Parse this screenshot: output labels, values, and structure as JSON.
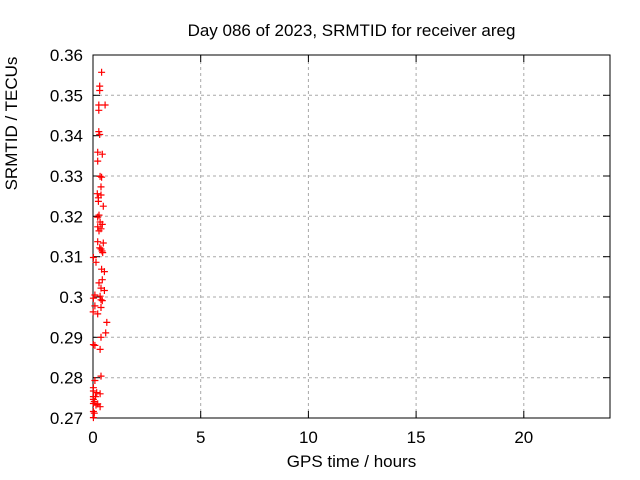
{
  "chart_data": {
    "type": "scatter",
    "title": "Day 086 of 2023, SRMTID for receiver areg",
    "xlabel": "GPS time / hours",
    "ylabel": "SRMTID / TECUs",
    "xlim": [
      0,
      24
    ],
    "ylim": [
      0.27,
      0.36
    ],
    "xticks": [
      {
        "value": 0,
        "label": "0"
      },
      {
        "value": 5,
        "label": "5"
      },
      {
        "value": 10,
        "label": "10"
      },
      {
        "value": 15,
        "label": "15"
      },
      {
        "value": 20,
        "label": "20"
      }
    ],
    "yticks": [
      {
        "value": 0.27,
        "label": "0.27"
      },
      {
        "value": 0.28,
        "label": "0.28"
      },
      {
        "value": 0.29,
        "label": "0.29"
      },
      {
        "value": 0.3,
        "label": "0.3"
      },
      {
        "value": 0.31,
        "label": "0.31"
      },
      {
        "value": 0.32,
        "label": "0.32"
      },
      {
        "value": 0.33,
        "label": "0.33"
      },
      {
        "value": 0.34,
        "label": "0.34"
      },
      {
        "value": 0.35,
        "label": "0.35"
      },
      {
        "value": 0.36,
        "label": "0.36"
      }
    ],
    "grid": true,
    "grid_style": "dashed",
    "legend": "none",
    "marker": "plus",
    "colors": {
      "marker": "#ff0000",
      "grid": "#a8a8a8",
      "axis": "#000000",
      "background": "#ffffff",
      "text": "#000000"
    },
    "series": [
      {
        "name": "SRMTID",
        "points": [
          [
            0.4,
            0.3557
          ],
          [
            0.31,
            0.3523
          ],
          [
            0.31,
            0.3512
          ],
          [
            0.27,
            0.3476
          ],
          [
            0.56,
            0.3476
          ],
          [
            0.27,
            0.3463
          ],
          [
            0.27,
            0.341
          ],
          [
            0.31,
            0.3403
          ],
          [
            0.22,
            0.3359
          ],
          [
            0.43,
            0.3354
          ],
          [
            0.22,
            0.3337
          ],
          [
            0.33,
            0.3299
          ],
          [
            0.4,
            0.3297
          ],
          [
            0.37,
            0.3273
          ],
          [
            0.2,
            0.3256
          ],
          [
            0.37,
            0.3253
          ],
          [
            0.25,
            0.3246
          ],
          [
            0.25,
            0.3237
          ],
          [
            0.48,
            0.3225
          ],
          [
            0.28,
            0.3203
          ],
          [
            0.22,
            0.3198
          ],
          [
            0.33,
            0.3186
          ],
          [
            0.43,
            0.318
          ],
          [
            0.22,
            0.3174
          ],
          [
            0.37,
            0.3169
          ],
          [
            0.28,
            0.3164
          ],
          [
            0.22,
            0.3137
          ],
          [
            0.48,
            0.3134
          ],
          [
            0.31,
            0.3122
          ],
          [
            0.37,
            0.3119
          ],
          [
            0.42,
            0.3114
          ],
          [
            0.45,
            0.311
          ],
          [
            0.02,
            0.3098
          ],
          [
            0.14,
            0.3086
          ],
          [
            0.4,
            0.3069
          ],
          [
            0.53,
            0.3063
          ],
          [
            0.43,
            0.3043
          ],
          [
            0.28,
            0.3035
          ],
          [
            0.37,
            0.3022
          ],
          [
            0.53,
            0.3016
          ],
          [
            0.09,
            0.3005
          ],
          [
            0.33,
            0.3002
          ],
          [
            0.02,
            0.2997
          ],
          [
            0.37,
            0.2993
          ],
          [
            0.43,
            0.2991
          ],
          [
            0.09,
            0.2978
          ],
          [
            0.37,
            0.2974
          ],
          [
            0.01,
            0.2963
          ],
          [
            0.22,
            0.2958
          ],
          [
            0.64,
            0.2937
          ],
          [
            0.59,
            0.2911
          ],
          [
            0.37,
            0.29
          ],
          [
            0.02,
            0.2882
          ],
          [
            0.09,
            0.288
          ],
          [
            0.33,
            0.287
          ],
          [
            0.37,
            0.2804
          ],
          [
            0.09,
            0.2793
          ],
          [
            0.02,
            0.2775
          ],
          [
            0.02,
            0.2767
          ],
          [
            0.17,
            0.2763
          ],
          [
            0.33,
            0.276
          ],
          [
            0.02,
            0.2753
          ],
          [
            0.11,
            0.2753
          ],
          [
            0.02,
            0.2746
          ],
          [
            0.06,
            0.2741
          ],
          [
            0.02,
            0.2736
          ],
          [
            0.14,
            0.2732
          ],
          [
            0.33,
            0.2728
          ],
          [
            0.22,
            0.2735
          ],
          [
            0.02,
            0.2716
          ],
          [
            0.06,
            0.2712
          ],
          [
            0.02,
            0.2701
          ]
        ]
      }
    ]
  }
}
